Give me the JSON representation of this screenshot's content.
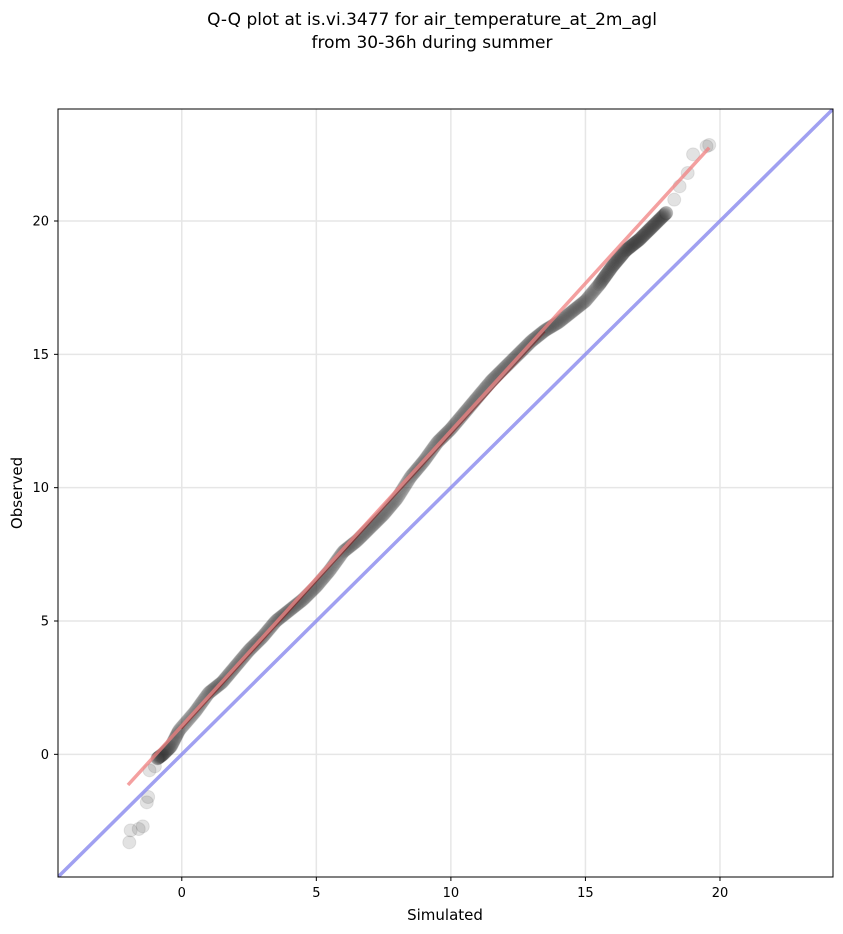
{
  "chart_data": {
    "type": "scatter",
    "title": "Q-Q plot at is.vi.3477 for air_temperature_at_2m_agl",
    "subtitle": "from 30-36h during summer",
    "xlabel": "Simulated",
    "ylabel": "Observed",
    "xlim": [
      -4.6,
      24.2
    ],
    "ylim": [
      -4.6,
      24.2
    ],
    "xticks": [
      0,
      5,
      10,
      15,
      20
    ],
    "yticks": [
      0,
      5,
      10,
      15,
      20
    ],
    "grid": true,
    "colors": {
      "points": "#333333",
      "fit_line": "#f08080",
      "fit_line_center": "#8b0000",
      "identity_line": "#8888ee",
      "grid": "#e6e6e6"
    },
    "quantile_anchors": [
      [
        -1.95,
        -3.3
      ],
      [
        -1.9,
        -2.85
      ],
      [
        -1.6,
        -2.8
      ],
      [
        -1.45,
        -2.7
      ],
      [
        -1.3,
        -1.8
      ],
      [
        -1.25,
        -1.6
      ],
      [
        -1.2,
        -0.6
      ],
      [
        -1.0,
        -0.45
      ],
      [
        -0.9,
        -0.15
      ],
      [
        -0.7,
        0.0
      ],
      [
        -0.4,
        0.3
      ],
      [
        -0.1,
        0.9
      ],
      [
        0.5,
        1.6
      ],
      [
        1.0,
        2.3
      ],
      [
        1.5,
        2.7
      ],
      [
        2.0,
        3.3
      ],
      [
        2.5,
        3.9
      ],
      [
        3.0,
        4.4
      ],
      [
        3.5,
        5.0
      ],
      [
        4.0,
        5.4
      ],
      [
        4.5,
        5.8
      ],
      [
        5.0,
        6.3
      ],
      [
        5.5,
        6.9
      ],
      [
        6.0,
        7.6
      ],
      [
        6.5,
        8.0
      ],
      [
        7.0,
        8.5
      ],
      [
        7.5,
        9.0
      ],
      [
        8.0,
        9.6
      ],
      [
        8.5,
        10.4
      ],
      [
        9.0,
        11.0
      ],
      [
        9.5,
        11.7
      ],
      [
        10.0,
        12.2
      ],
      [
        10.5,
        12.8
      ],
      [
        11.0,
        13.4
      ],
      [
        11.5,
        14.0
      ],
      [
        12.0,
        14.5
      ],
      [
        12.5,
        15.0
      ],
      [
        13.0,
        15.5
      ],
      [
        13.5,
        15.9
      ],
      [
        14.0,
        16.2
      ],
      [
        14.5,
        16.6
      ],
      [
        15.0,
        17.0
      ],
      [
        15.5,
        17.6
      ],
      [
        16.0,
        18.3
      ],
      [
        16.5,
        18.9
      ],
      [
        17.0,
        19.3
      ],
      [
        17.5,
        19.8
      ],
      [
        18.0,
        20.3
      ],
      [
        18.3,
        20.8
      ],
      [
        18.5,
        21.3
      ],
      [
        18.8,
        21.8
      ],
      [
        19.0,
        22.5
      ],
      [
        19.5,
        22.8
      ],
      [
        19.6,
        22.85
      ]
    ],
    "fit_line": {
      "x": [
        -2.0,
        19.6
      ],
      "y": [
        -1.15,
        22.75
      ]
    },
    "identity_line": {
      "x": [
        -4.6,
        24.2
      ],
      "y": [
        -4.6,
        24.2
      ]
    },
    "n_points": 700
  }
}
